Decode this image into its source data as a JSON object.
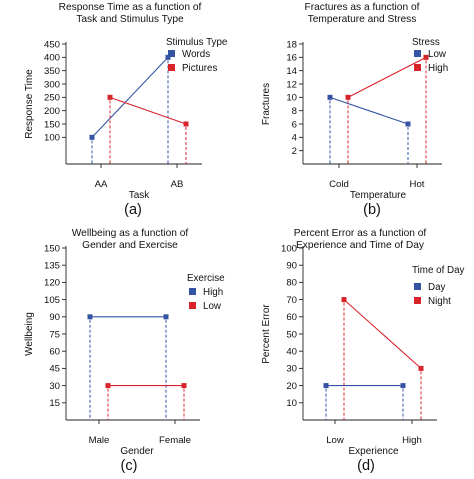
{
  "chart_data": [
    {
      "type": "line",
      "panel_label": "(a)",
      "title_lines": [
        "Response Time as a function of",
        "Task and Stimulus Type"
      ],
      "xlabel": "Task",
      "ylabel": "Response Time",
      "categories": [
        "AA",
        "AB"
      ],
      "ylim": [
        0,
        450
      ],
      "yticks": [
        100,
        150,
        200,
        250,
        300,
        350,
        400,
        450
      ],
      "legend_title": "Stimulus Type",
      "legend_position": "top-right",
      "grid": false,
      "series": [
        {
          "name": "Words",
          "color": "#3553a3",
          "marker": "square",
          "values": [
            100,
            400
          ]
        },
        {
          "name": "Pictures",
          "color": "#d9232b",
          "marker": "square",
          "values": [
            250,
            150
          ]
        }
      ]
    },
    {
      "type": "line",
      "panel_label": "(b)",
      "title_lines": [
        "Fractures as a function of",
        "Temperature and Stress"
      ],
      "xlabel": "Temperature",
      "ylabel": "Fractures",
      "categories": [
        "Cold",
        "Hot"
      ],
      "ylim": [
        0,
        18
      ],
      "yticks": [
        2,
        4,
        6,
        8,
        10,
        12,
        14,
        16,
        18
      ],
      "legend_title": "Stress",
      "legend_position": "top-right",
      "grid": false,
      "series": [
        {
          "name": "Low",
          "color": "#3553a3",
          "marker": "square",
          "values": [
            10,
            6
          ]
        },
        {
          "name": "High",
          "color": "#d9232b",
          "marker": "square",
          "values": [
            10,
            16
          ]
        }
      ]
    },
    {
      "type": "line",
      "panel_label": "(c)",
      "title_lines": [
        "Wellbeing as a function of",
        "Gender and Exercise"
      ],
      "xlabel": "Gender",
      "ylabel": "Wellbeing",
      "categories": [
        "Male",
        "Female"
      ],
      "ylim": [
        0,
        150
      ],
      "yticks": [
        15,
        30,
        45,
        60,
        75,
        90,
        105,
        120,
        135,
        150
      ],
      "legend_title": "Exercise",
      "legend_position": "right",
      "grid": false,
      "series": [
        {
          "name": "High",
          "color": "#3553a3",
          "marker": "square",
          "values": [
            90,
            90
          ]
        },
        {
          "name": "Low",
          "color": "#d9232b",
          "marker": "square",
          "values": [
            30,
            30
          ]
        }
      ]
    },
    {
      "type": "line",
      "panel_label": "(d)",
      "title_lines": [
        "Percent Error as a function of",
        "Experience and Time of Day"
      ],
      "xlabel": "Experience",
      "ylabel": "Percent Error",
      "categories": [
        "Low",
        "High"
      ],
      "ylim": [
        0,
        100
      ],
      "yticks": [
        10,
        20,
        30,
        40,
        50,
        60,
        70,
        80,
        90,
        100
      ],
      "legend_title": "Time of Day",
      "legend_position": "right",
      "grid": false,
      "series": [
        {
          "name": "Day",
          "color": "#3553a3",
          "marker": "square",
          "values": [
            20,
            20
          ]
        },
        {
          "name": "Night",
          "color": "#d9232b",
          "marker": "square",
          "values": [
            70,
            30
          ]
        }
      ]
    }
  ]
}
